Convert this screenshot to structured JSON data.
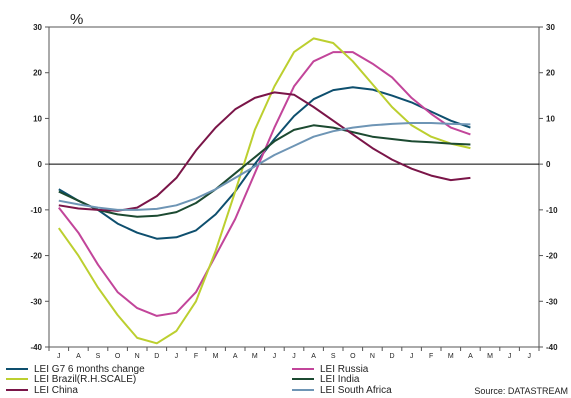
{
  "chart_data": {
    "type": "line",
    "unit_label": "%",
    "source": "Source: DATASTREAM",
    "x": [
      "J",
      "A",
      "S",
      "O",
      "N",
      "D",
      "J",
      "F",
      "M",
      "A",
      "M",
      "J",
      "J",
      "A",
      "S",
      "O",
      "N",
      "D",
      "J",
      "F",
      "M",
      "A",
      "M",
      "J",
      "J"
    ],
    "ylim": [
      -40,
      30
    ],
    "yticks": [
      -40,
      -30,
      -20,
      -10,
      0,
      10,
      20,
      30
    ],
    "series": [
      {
        "name": "LEI G7 6 months change",
        "color": "#0e4f6e",
        "values": [
          -5.5,
          -8,
          -10,
          -13,
          -15,
          -16.3,
          -16,
          -14.5,
          -11,
          -6,
          0,
          5.5,
          10.5,
          14.2,
          16.2,
          16.8,
          16.3,
          15,
          13.5,
          11.5,
          9.5,
          8,
          null,
          null,
          null
        ]
      },
      {
        "name": "LEI Russia",
        "color": "#c2459a",
        "values": [
          -9.5,
          -15,
          -22,
          -28,
          -31.5,
          -33.2,
          -32.5,
          -28,
          -20,
          -12,
          -2,
          8,
          17,
          22.5,
          24.5,
          24.5,
          22,
          19,
          14.5,
          11,
          8,
          6.5,
          null,
          null,
          null
        ]
      },
      {
        "name": "LEI Brazil(R.H.SCALE)",
        "color": "#bccf2f",
        "values": [
          -14,
          -20,
          -27,
          -33,
          -38,
          -39.2,
          -36.5,
          -30,
          -19,
          -6,
          7.5,
          17,
          24.5,
          27.5,
          26.5,
          22.5,
          17.5,
          12.5,
          8.5,
          6,
          4.5,
          3.5,
          null,
          null,
          null
        ]
      },
      {
        "name": "LEI India",
        "color": "#1c4a31",
        "values": [
          -6,
          -8,
          -10,
          -11,
          -11.5,
          -11.3,
          -10.5,
          -8.5,
          -5.5,
          -2,
          1.5,
          5,
          7.5,
          8.5,
          8,
          7,
          6,
          5.5,
          5,
          4.8,
          4.5,
          4.3,
          null,
          null,
          null
        ]
      },
      {
        "name": "LEI China",
        "color": "#7a1548",
        "values": [
          -9,
          -9.7,
          -10,
          -10.2,
          -9.5,
          -7,
          -3,
          3,
          8,
          12,
          14.5,
          15.7,
          15.2,
          12.5,
          9.5,
          6.5,
          3.5,
          1,
          -1,
          -2.5,
          -3.5,
          -3,
          null,
          null,
          null
        ]
      },
      {
        "name": "LEI South Africa",
        "color": "#6e95b5",
        "values": [
          -8,
          -8.8,
          -9.5,
          -10,
          -10,
          -9.8,
          -9,
          -7.5,
          -5.5,
          -3,
          -0.5,
          2,
          4,
          6,
          7.2,
          8,
          8.5,
          8.8,
          9,
          9,
          8.8,
          8.7,
          null,
          null,
          null
        ]
      }
    ]
  }
}
